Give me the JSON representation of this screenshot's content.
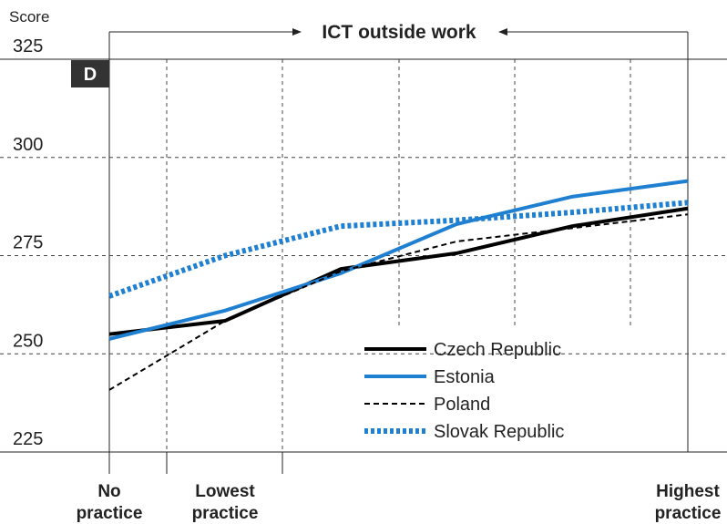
{
  "chart_data": {
    "type": "line",
    "title": "ICT outside work",
    "panel_label": "D",
    "y_label": "Score",
    "categories": [
      "No practice",
      "Lowest practice",
      null,
      null,
      null,
      "Highest practice"
    ],
    "ylim": [
      225,
      325
    ],
    "yticks": [
      225,
      250,
      275,
      300,
      325
    ],
    "grid": true,
    "legend": "lower center",
    "series": [
      {
        "name": "Czech Republic",
        "color": "#000000",
        "style": "solid",
        "values": [
          255,
          258.4,
          271.6,
          275.6,
          282.5,
          287
        ]
      },
      {
        "name": "Estonia",
        "color": "#1f7fd0",
        "style": "solid",
        "values": [
          253.8,
          261,
          270.5,
          283,
          290,
          294
        ]
      },
      {
        "name": "Poland",
        "color": "#000000",
        "style": "dashed",
        "values": [
          240.8,
          258.4,
          271,
          278.6,
          282,
          285.5
        ]
      },
      {
        "name": "Slovak Republic",
        "color": "#1f7fd0",
        "style": "dotted",
        "values": [
          264.7,
          275,
          282.5,
          284,
          286,
          288.5
        ]
      }
    ]
  }
}
